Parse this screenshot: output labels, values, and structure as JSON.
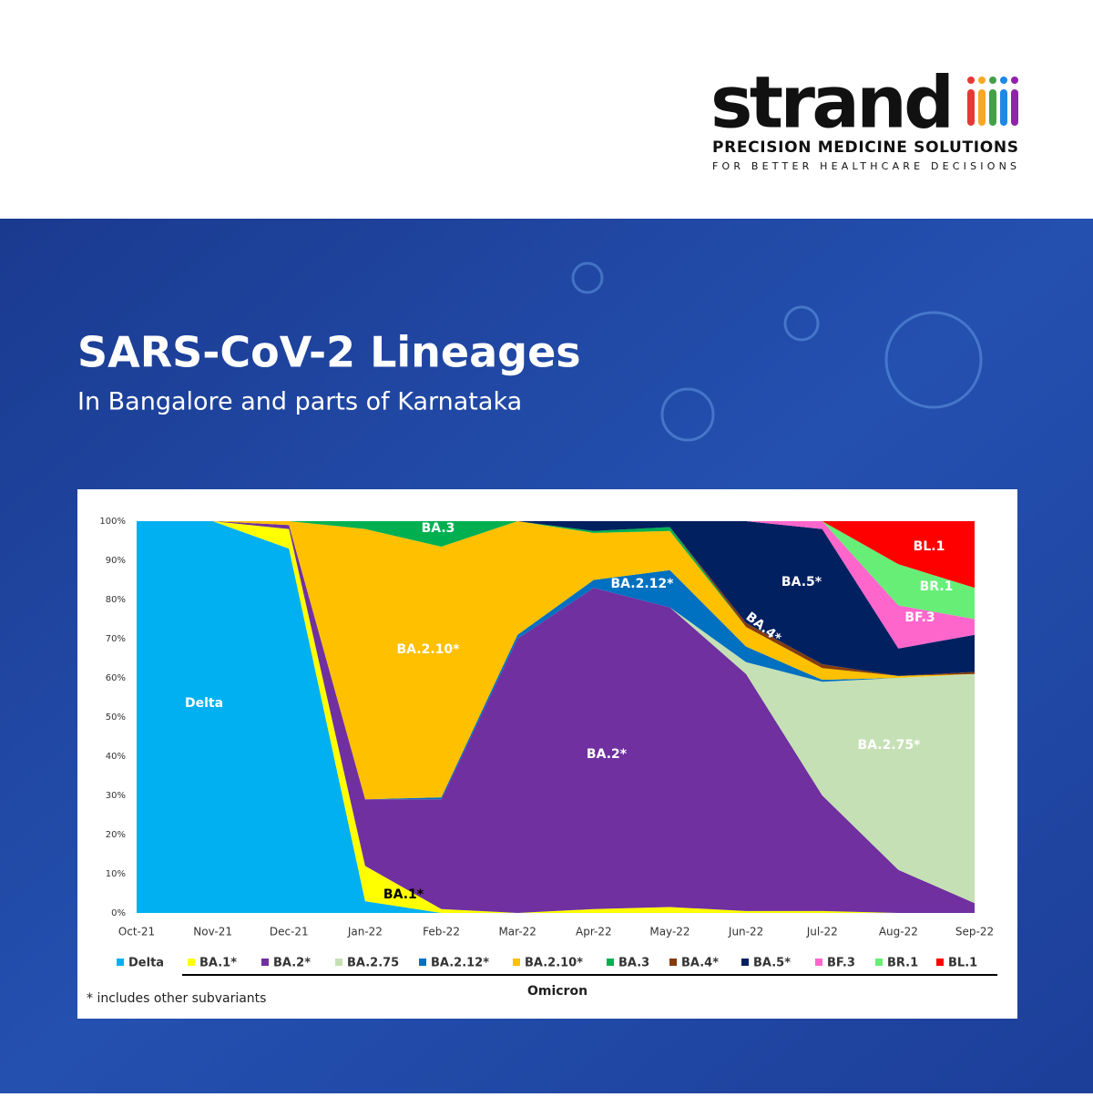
{
  "brand": {
    "name": "strand",
    "tagline": "PRECISION MEDICINE SOLUTIONS",
    "subtagline": "FOR BETTER HEALTHCARE DECISIONS"
  },
  "chart_data": {
    "type": "stacked_area",
    "title": "SARS-CoV-2 Lineages",
    "subtitle": "In Bangalore and parts of Karnataka",
    "categories": [
      "Oct-21",
      "Nov-21",
      "Dec-21",
      "Jan-22",
      "Feb-22",
      "Mar-22",
      "Apr-22",
      "May-22",
      "Jun-22",
      "Jul-22",
      "Aug-22",
      "Sep-22"
    ],
    "series": [
      {
        "name": "Delta",
        "color": "#00b0f0",
        "values": [
          100,
          100,
          93,
          3,
          0,
          0,
          0,
          0,
          0,
          0,
          0,
          0
        ]
      },
      {
        "name": "BA.1*",
        "color": "#ffff00",
        "values": [
          0,
          0,
          5,
          9,
          1,
          0,
          1,
          1.5,
          0.5,
          0.5,
          0,
          0
        ]
      },
      {
        "name": "BA.2*",
        "color": "#7030a0",
        "values": [
          0,
          0,
          1,
          17,
          28,
          70,
          82,
          76.5,
          60.5,
          29.5,
          11,
          2.5
        ]
      },
      {
        "name": "BA.2.75",
        "color": "#c5e0b4",
        "values": [
          0,
          0,
          0,
          0,
          0,
          0,
          0,
          0,
          3,
          29,
          49,
          58.5
        ]
      },
      {
        "name": "BA.2.12*",
        "color": "#0070c0",
        "values": [
          0,
          0,
          0,
          0,
          0.5,
          1,
          2,
          9.5,
          4,
          0.5,
          0,
          0
        ]
      },
      {
        "name": "BA.2.10*",
        "color": "#ffc000",
        "values": [
          0,
          0,
          1,
          69,
          64,
          29,
          12,
          10,
          5,
          3,
          0.5,
          0
        ]
      },
      {
        "name": "BA.3",
        "color": "#00b050",
        "values": [
          0,
          0,
          0,
          2,
          6.5,
          0,
          0.5,
          1,
          0,
          0,
          0,
          0
        ]
      },
      {
        "name": "BA.4*",
        "color": "#843c0c",
        "values": [
          0,
          0,
          0,
          0,
          0,
          0,
          0,
          0,
          1,
          1,
          0,
          0.5
        ]
      },
      {
        "name": "BA.5*",
        "color": "#002060",
        "values": [
          0,
          0,
          0,
          0,
          0,
          0,
          2.5,
          1.5,
          26,
          34.5,
          7,
          9.5
        ]
      },
      {
        "name": "BF.3",
        "color": "#ff66cc",
        "values": [
          0,
          0,
          0,
          0,
          0,
          0,
          0,
          0,
          0,
          2,
          11,
          4
        ]
      },
      {
        "name": "BR.1",
        "color": "#66ee77",
        "values": [
          0,
          0,
          0,
          0,
          0,
          0,
          0,
          0,
          0,
          0,
          10.5,
          8
        ]
      },
      {
        "name": "BL.1",
        "color": "#ff0000",
        "values": [
          0,
          0,
          0,
          0,
          0,
          0,
          0,
          0,
          0,
          0,
          11,
          17
        ]
      }
    ],
    "area_labels": [
      "Delta",
      "BA.1*",
      "BA.2*",
      "BA.2.75*",
      "BA.2.12*",
      "BA.2.10*",
      "BA.3",
      "BA.4*",
      "BA.5*",
      "BF.3",
      "BR.1",
      "BL.1"
    ],
    "ylim": [
      0,
      100
    ],
    "yticks": [
      {
        "value": 0,
        "label": "0%"
      },
      {
        "value": 10,
        "label": "10%"
      },
      {
        "value": 20,
        "label": "20%"
      },
      {
        "value": 30,
        "label": "30%"
      },
      {
        "value": 40,
        "label": "40%"
      },
      {
        "value": 50,
        "label": "50%"
      },
      {
        "value": 60,
        "label": "60%"
      },
      {
        "value": 70,
        "label": "70%"
      },
      {
        "value": 80,
        "label": "80%"
      },
      {
        "value": 90,
        "label": "90%"
      },
      {
        "value": 100,
        "label": "100%"
      }
    ],
    "group_label": "Omicron",
    "footnote": "* includes other subvariants"
  }
}
